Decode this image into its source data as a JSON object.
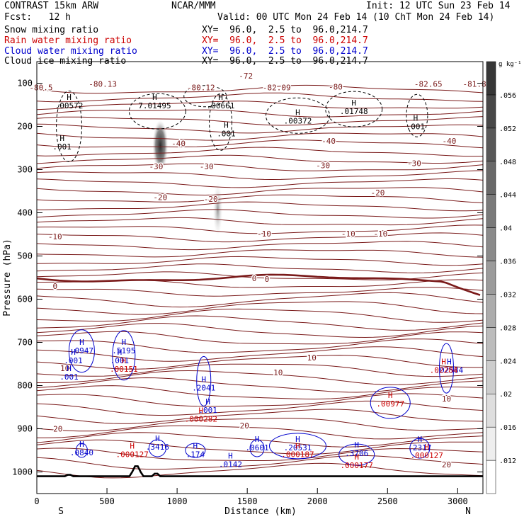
{
  "header": {
    "left_title": "CONTRAST 15km ARW",
    "center_title": "NCAR/MMM",
    "init_time": "Init: 12 UTC Sun 23 Feb 14",
    "fcst": "Fcst:   12 h",
    "valid_time": "Valid: 00 UTC Mon 24 Feb 14 (10 ChT Mon 24 Feb 14)",
    "fields": [
      {
        "name": "Snow mixing ratio",
        "xy": "XY=  96.0,  2.5 to  96.0,214.7",
        "color": "#000000"
      },
      {
        "name": "Rain water mixing ratio",
        "xy": "XY=  96.0,  2.5 to  96.0,214.7",
        "color": "#cc0000"
      },
      {
        "name": "Cloud water mixing ratio",
        "xy": "XY=  96.0,  2.5 to  96.0,214.7",
        "color": "#0000cc"
      },
      {
        "name": "Cloud ice mixing ratio",
        "xy": "XY=  96.0,  2.5 to  96.0,214.7",
        "color": "#000000"
      }
    ]
  },
  "chart_data": {
    "type": "cross-section",
    "xlabel": "Distance (km)",
    "ylabel": "Pressure (hPa)",
    "xlim": [
      0,
      3180
    ],
    "ylim": [
      1050,
      50
    ],
    "xticks": [
      "0",
      "500",
      "1000",
      "1500",
      "2000",
      "2500",
      "3000"
    ],
    "yticks": [
      "100",
      "200",
      "300",
      "400",
      "500",
      "600",
      "700",
      "800",
      "900",
      "1000"
    ],
    "x_endpoints": [
      "S",
      "N"
    ],
    "colorbar": {
      "unit": "g kg⁻¹",
      "ticks": [
        ".012",
        ".016",
        ".02",
        ".024",
        ".028",
        ".032",
        ".036",
        ".04",
        ".044",
        ".048",
        ".052",
        ".056"
      ]
    },
    "temperature_labels": [
      {
        "text": "-72",
        "x": 1490,
        "p": 83
      },
      {
        "text": "-80.13",
        "x": 470,
        "p": 102
      },
      {
        "text": "-80.12",
        "x": 1170,
        "p": 110
      },
      {
        "text": "-82.09",
        "x": 1710,
        "p": 110
      },
      {
        "text": "-80",
        "x": 2130,
        "p": 108
      },
      {
        "text": "-82.65",
        "x": 2790,
        "p": 102
      },
      {
        "text": "-81.8",
        "x": 3120,
        "p": 102
      },
      {
        "text": "-80.5",
        "x": 30,
        "p": 110
      },
      {
        "text": "-40",
        "x": 1010,
        "p": 239
      },
      {
        "text": "-40",
        "x": 2080,
        "p": 234
      },
      {
        "text": "-40",
        "x": 2940,
        "p": 234
      },
      {
        "text": "-30",
        "x": 850,
        "p": 293
      },
      {
        "text": "-30",
        "x": 1210,
        "p": 293
      },
      {
        "text": "-30",
        "x": 2040,
        "p": 290
      },
      {
        "text": "-30",
        "x": 2690,
        "p": 285
      },
      {
        "text": "-20",
        "x": 880,
        "p": 364
      },
      {
        "text": "-20",
        "x": 1240,
        "p": 368
      },
      {
        "text": "-20",
        "x": 2430,
        "p": 353
      },
      {
        "text": "-10",
        "x": 130,
        "p": 455
      },
      {
        "text": "-10",
        "x": 1620,
        "p": 448
      },
      {
        "text": "-10",
        "x": 2220,
        "p": 448
      },
      {
        "text": "-10",
        "x": 2450,
        "p": 448
      },
      {
        "text": "0",
        "x": 130,
        "p": 570
      },
      {
        "text": "0",
        "x": 1550,
        "p": 552
      },
      {
        "text": "0",
        "x": 1640,
        "p": 553
      },
      {
        "text": "10",
        "x": 200,
        "p": 760
      },
      {
        "text": "10",
        "x": 1720,
        "p": 770
      },
      {
        "text": "10",
        "x": 1960,
        "p": 735
      },
      {
        "text": "10",
        "x": 2920,
        "p": 830
      },
      {
        "text": "20",
        "x": 150,
        "p": 900
      },
      {
        "text": "20",
        "x": 1480,
        "p": 893
      },
      {
        "text": "20",
        "x": 2920,
        "p": 983
      }
    ],
    "cloud_ice_maxima": [
      {
        "label": ".00572",
        "x": 230,
        "p": 155
      },
      {
        "label": "7.01495",
        "x": 840,
        "p": 155
      },
      {
        "label": ".00661",
        "x": 1310,
        "p": 155
      },
      {
        "label": ".00372",
        "x": 1860,
        "p": 190
      },
      {
        "label": ".01748",
        "x": 2260,
        "p": 168
      },
      {
        "label": ".001",
        "x": 180,
        "p": 250
      },
      {
        "label": ".001",
        "x": 1350,
        "p": 220
      },
      {
        "label": ".001",
        "x": 2700,
        "p": 203
      }
    ],
    "cloud_water_maxima": [
      {
        "label": ".0947",
        "x": 320,
        "p": 722
      },
      {
        "label": ".5195",
        "x": 620,
        "p": 722
      },
      {
        "label": ".001",
        "x": 260,
        "p": 745
      },
      {
        "label": ".001",
        "x": 590,
        "p": 745
      },
      {
        "label": ".001",
        "x": 230,
        "p": 783
      },
      {
        "label": ".2041",
        "x": 1190,
        "p": 808
      },
      {
        "label": ".001",
        "x": 1220,
        "p": 860
      },
      {
        "label": ".0840",
        "x": 320,
        "p": 958
      },
      {
        "label": ".3416",
        "x": 860,
        "p": 945
      },
      {
        "label": ".174",
        "x": 1130,
        "p": 962
      },
      {
        "label": ".0142",
        "x": 1380,
        "p": 985
      },
      {
        "label": ".0601",
        "x": 1570,
        "p": 947
      },
      {
        "label": ".20531",
        "x": 1860,
        "p": 947
      },
      {
        "label": ".3706",
        "x": 2280,
        "p": 960
      },
      {
        "label": ".2317",
        "x": 2730,
        "p": 947
      },
      {
        "label": ".02584",
        "x": 2940,
        "p": 767
      }
    ],
    "rain_water_maxima": [
      {
        "label": ".00151",
        "x": 620,
        "p": 765
      },
      {
        "label": ".000282",
        "x": 1170,
        "p": 880
      },
      {
        "label": ".000127",
        "x": 680,
        "p": 962
      },
      {
        "label": ".000187",
        "x": 1860,
        "p": 962
      },
      {
        "label": ".000177",
        "x": 2280,
        "p": 988
      },
      {
        "label": ".000127",
        "x": 2780,
        "p": 965
      },
      {
        "label": ".00977",
        "x": 2520,
        "p": 845
      },
      {
        "label": ".02284",
        "x": 2900,
        "p": 767
      }
    ],
    "snow_shading": [
      {
        "x": 880,
        "p_top": 185,
        "p_bottom": 305,
        "max": 0.056
      },
      {
        "x": 1290,
        "p_top": 330,
        "p_bottom": 455,
        "max": 0.03
      }
    ]
  }
}
